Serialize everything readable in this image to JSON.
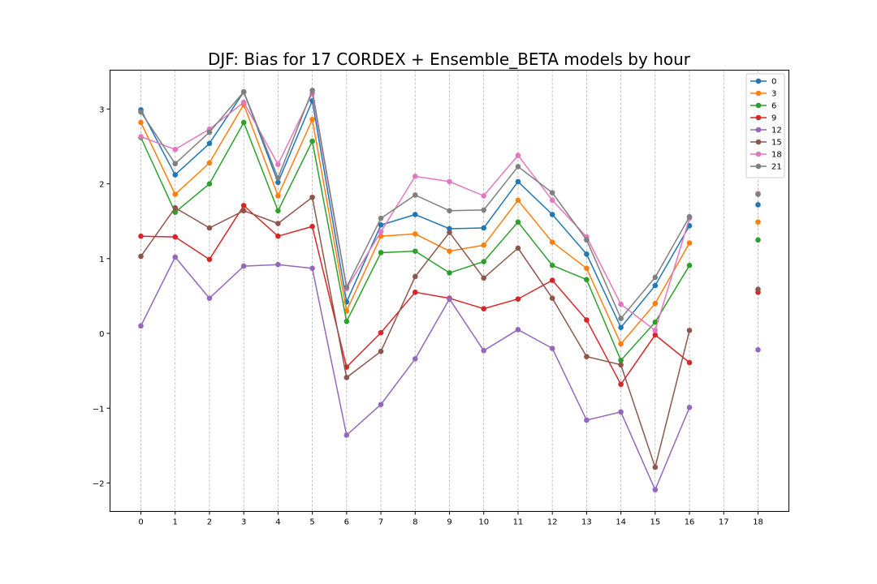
{
  "chart_data": {
    "type": "line",
    "title": "DJF: Bias for 17 CORDEX + Ensemble_BETA models by hour",
    "xlabel": "",
    "ylabel": "",
    "x": [
      0,
      1,
      2,
      3,
      4,
      5,
      6,
      7,
      8,
      9,
      10,
      11,
      12,
      13,
      14,
      15,
      16,
      17,
      18
    ],
    "xlim": [
      -0.9,
      18.9
    ],
    "ylim": [
      -2.38,
      3.52
    ],
    "yticks": [
      -2,
      -1,
      0,
      1,
      2,
      3
    ],
    "ytick_labels": [
      "−2",
      "−1",
      "0",
      "1",
      "2",
      "3"
    ],
    "grid": "x-dashed",
    "legend": "top-right",
    "series": [
      {
        "name": "0",
        "color": "#1f77b4",
        "values": [
          2.99,
          2.12,
          2.54,
          3.23,
          2.02,
          3.11,
          0.42,
          1.45,
          1.59,
          1.4,
          1.41,
          2.03,
          1.59,
          1.06,
          0.08,
          0.64,
          1.44,
          null,
          1.72
        ]
      },
      {
        "name": "3",
        "color": "#ff7f0e",
        "values": [
          2.82,
          1.86,
          2.28,
          3.06,
          1.84,
          2.86,
          0.3,
          1.3,
          1.33,
          1.1,
          1.18,
          1.78,
          1.22,
          0.87,
          -0.14,
          0.4,
          1.21,
          null,
          1.49
        ]
      },
      {
        "name": "6",
        "color": "#2ca02c",
        "values": [
          2.62,
          1.62,
          2.0,
          2.82,
          1.64,
          2.57,
          0.16,
          1.08,
          1.1,
          0.81,
          0.96,
          1.49,
          0.91,
          0.72,
          -0.36,
          0.15,
          0.91,
          null,
          1.25
        ]
      },
      {
        "name": "9",
        "color": "#d62728",
        "values": [
          1.3,
          1.29,
          0.99,
          1.71,
          1.3,
          1.43,
          -0.45,
          0.01,
          0.55,
          0.47,
          0.33,
          0.46,
          0.71,
          0.18,
          -0.68,
          -0.02,
          -0.39,
          null,
          0.55
        ]
      },
      {
        "name": "12",
        "color": "#9467bd",
        "values": [
          0.1,
          1.02,
          0.47,
          0.9,
          0.92,
          0.87,
          -1.36,
          -0.95,
          -0.34,
          0.46,
          -0.23,
          0.05,
          -0.2,
          -1.16,
          -1.05,
          -2.09,
          -0.99,
          null,
          -0.22
        ]
      },
      {
        "name": "15",
        "color": "#8c564b",
        "values": [
          1.03,
          1.68,
          1.41,
          1.64,
          1.47,
          1.82,
          -0.59,
          -0.24,
          0.76,
          1.35,
          0.74,
          1.14,
          0.47,
          -0.31,
          -0.42,
          -1.79,
          0.04,
          null,
          0.59
        ]
      },
      {
        "name": "18",
        "color": "#e377c2",
        "values": [
          2.63,
          2.46,
          2.73,
          3.09,
          2.26,
          3.21,
          0.6,
          1.36,
          2.1,
          2.03,
          1.84,
          2.38,
          1.78,
          1.29,
          0.39,
          0.04,
          1.54,
          null,
          1.87
        ]
      },
      {
        "name": "21",
        "color": "#7f7f7f",
        "values": [
          2.96,
          2.27,
          2.69,
          3.23,
          2.08,
          3.25,
          0.62,
          1.54,
          1.85,
          1.64,
          1.65,
          2.23,
          1.88,
          1.25,
          0.2,
          0.75,
          1.56,
          null,
          1.86
        ]
      }
    ]
  }
}
